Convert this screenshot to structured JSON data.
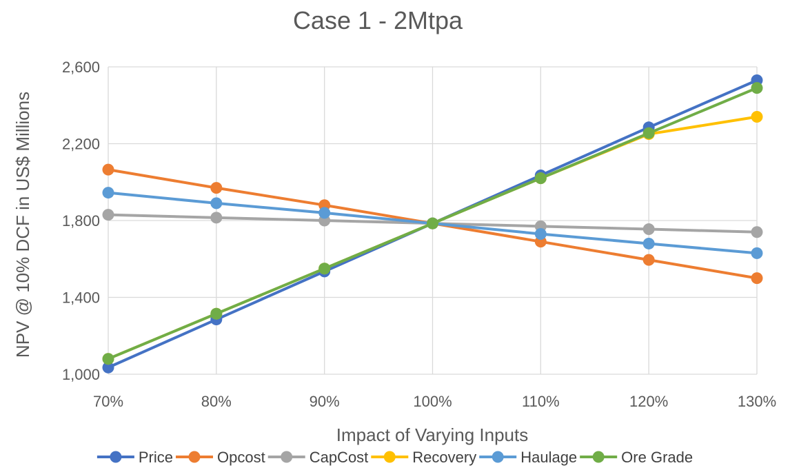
{
  "chart_data": {
    "type": "line",
    "title": "Case 1 - 2Mtpa",
    "xlabel": "Impact of Varying Inputs",
    "ylabel": "NPV @ 10% DCF in US$ Millions",
    "categories": [
      "70%",
      "80%",
      "90%",
      "100%",
      "110%",
      "120%",
      "130%"
    ],
    "ylim": [
      1000,
      2600
    ],
    "yticks": [
      1000,
      1400,
      1800,
      2200,
      2600
    ],
    "ytick_labels": [
      "1,000",
      "1,400",
      "1,800",
      "2,200",
      "2,600"
    ],
    "grid": true,
    "legend_position": "bottom",
    "series": [
      {
        "name": "Price",
        "color": "#4472c4",
        "values": [
          1035,
          1285,
          1535,
          1785,
          2035,
          2285,
          2530
        ]
      },
      {
        "name": "Opcost",
        "color": "#ed7d31",
        "values": [
          2065,
          1970,
          1880,
          1785,
          1690,
          1595,
          1500
        ]
      },
      {
        "name": "CapCost",
        "color": "#a5a5a5",
        "values": [
          1830,
          1815,
          1800,
          1785,
          1770,
          1755,
          1740
        ]
      },
      {
        "name": "Recovery",
        "color": "#ffc000",
        "values": [
          1080,
          1315,
          1550,
          1785,
          2020,
          2250,
          2340
        ]
      },
      {
        "name": "Haulage",
        "color": "#5b9bd5",
        "values": [
          1945,
          1890,
          1840,
          1785,
          1730,
          1680,
          1630
        ]
      },
      {
        "name": "Ore Grade",
        "color": "#70ad47",
        "values": [
          1080,
          1315,
          1550,
          1785,
          2020,
          2255,
          2490
        ]
      }
    ]
  }
}
